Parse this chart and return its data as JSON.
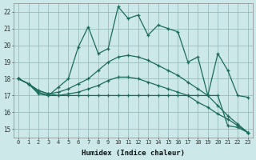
{
  "xlabel": "Humidex (Indice chaleur)",
  "bg_color": "#cce8e8",
  "line_color": "#1a6b5a",
  "grid_color": "#99bbbb",
  "xlim": [
    -0.5,
    23.5
  ],
  "ylim": [
    14.5,
    22.5
  ],
  "xticks": [
    0,
    1,
    2,
    3,
    4,
    5,
    6,
    7,
    8,
    9,
    10,
    11,
    12,
    13,
    14,
    15,
    16,
    17,
    18,
    19,
    20,
    21,
    22,
    23
  ],
  "yticks": [
    15,
    16,
    17,
    18,
    19,
    20,
    21,
    22
  ],
  "line1_x": [
    0,
    1,
    2,
    3,
    4,
    5,
    6,
    7,
    8,
    9,
    10,
    11,
    12,
    13,
    14,
    15,
    16,
    17,
    18,
    19,
    20,
    21,
    22,
    23
  ],
  "line1_y": [
    18.0,
    17.7,
    17.2,
    17.0,
    17.5,
    18.0,
    19.9,
    21.1,
    19.5,
    19.8,
    22.3,
    21.6,
    21.8,
    20.6,
    21.2,
    21.0,
    20.8,
    19.0,
    19.3,
    17.0,
    19.5,
    18.5,
    17.0,
    16.9
  ],
  "line2_x": [
    0,
    1,
    2,
    3,
    4,
    5,
    6,
    7,
    8,
    9,
    10,
    11,
    12,
    13,
    14,
    15,
    16,
    17,
    18,
    19,
    20,
    21,
    22,
    23
  ],
  "line2_y": [
    18.0,
    17.7,
    17.1,
    17.0,
    17.0,
    17.0,
    17.0,
    17.0,
    17.0,
    17.0,
    17.0,
    17.0,
    17.0,
    17.0,
    17.0,
    17.0,
    17.0,
    17.0,
    17.0,
    17.0,
    17.0,
    15.2,
    15.1,
    14.8
  ],
  "line3_x": [
    0,
    1,
    2,
    3,
    4,
    5,
    6,
    7,
    8,
    9,
    10,
    11,
    12,
    13,
    14,
    15,
    16,
    17,
    18,
    19,
    20,
    21,
    22,
    23
  ],
  "line3_y": [
    18.0,
    17.7,
    17.3,
    17.1,
    17.0,
    17.1,
    17.2,
    17.4,
    17.6,
    17.9,
    18.1,
    18.1,
    18.0,
    17.8,
    17.6,
    17.4,
    17.2,
    17.0,
    16.6,
    16.3,
    15.9,
    15.6,
    15.2,
    14.8
  ],
  "line4_x": [
    0,
    1,
    2,
    3,
    4,
    5,
    6,
    7,
    8,
    9,
    10,
    11,
    12,
    13,
    14,
    15,
    16,
    17,
    18,
    19,
    20,
    21,
    22,
    23
  ],
  "line4_y": [
    18.0,
    17.7,
    17.3,
    17.1,
    17.2,
    17.4,
    17.7,
    18.0,
    18.5,
    19.0,
    19.3,
    19.4,
    19.3,
    19.1,
    18.8,
    18.5,
    18.2,
    17.8,
    17.4,
    17.0,
    16.4,
    15.8,
    15.3,
    14.8
  ]
}
